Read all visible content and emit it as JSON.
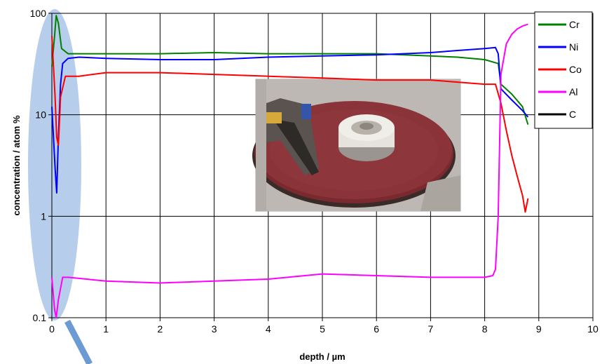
{
  "chart_data": {
    "type": "line",
    "title": "",
    "xlabel": "depth / µm",
    "ylabel": "concentration / atom %",
    "xlim": [
      0,
      10
    ],
    "ylim": [
      0.1,
      100
    ],
    "yscale": "log",
    "grid": true,
    "legend_position": "top-right",
    "x_ticks": [
      "0",
      "1",
      "2",
      "3",
      "4",
      "5",
      "6",
      "7",
      "8",
      "9",
      "10"
    ],
    "y_ticks": [
      "0.1",
      "1",
      "10",
      "100"
    ],
    "series": [
      {
        "name": "Cr",
        "color": "#008000",
        "x": [
          0.0,
          0.05,
          0.08,
          0.12,
          0.18,
          0.3,
          0.5,
          1,
          2,
          3,
          4,
          5,
          6,
          7,
          7.5,
          8.0,
          8.25,
          8.3,
          8.5,
          8.7,
          8.8
        ],
        "y": [
          30,
          60,
          95,
          80,
          45,
          40,
          40,
          40,
          40,
          41,
          40,
          40,
          40,
          38,
          37,
          35,
          32,
          20,
          16,
          12,
          8
        ]
      },
      {
        "name": "Ni",
        "color": "#0000ff",
        "x": [
          0.0,
          0.03,
          0.06,
          0.09,
          0.12,
          0.16,
          0.2,
          0.3,
          0.5,
          1,
          2,
          3,
          4,
          5,
          6,
          7,
          7.5,
          8.0,
          8.2,
          8.25,
          8.3,
          8.5,
          8.7,
          8.8
        ],
        "y": [
          12,
          6,
          3,
          1.7,
          6,
          20,
          32,
          36,
          37,
          36,
          35,
          35,
          37,
          38,
          39,
          41,
          43,
          45,
          46,
          40,
          18,
          14,
          11,
          9.5
        ]
      },
      {
        "name": "Co",
        "color": "#ff0000",
        "x": [
          0.0,
          0.03,
          0.06,
          0.09,
          0.12,
          0.16,
          0.25,
          0.5,
          1,
          2,
          3,
          4,
          5,
          6,
          7,
          7.5,
          8.0,
          8.2,
          8.3,
          8.4,
          8.5,
          8.6,
          8.7,
          8.75,
          8.8
        ],
        "y": [
          60,
          30,
          15,
          6,
          5,
          15,
          24,
          24,
          26,
          26,
          25,
          24,
          23,
          22,
          22,
          21,
          20,
          20,
          13,
          7,
          4,
          2.5,
          1.6,
          1.1,
          1.5
        ]
      },
      {
        "name": "Al",
        "color": "#ff00ff",
        "x": [
          0.0,
          0.05,
          0.08,
          0.12,
          0.2,
          0.3,
          1,
          2,
          3,
          4,
          5,
          6,
          7,
          7.5,
          8.0,
          8.15,
          8.2,
          8.25,
          8.3,
          8.4,
          8.5,
          8.6,
          8.7,
          8.8
        ],
        "y": [
          0.25,
          0.12,
          0.1,
          0.15,
          0.25,
          0.25,
          0.23,
          0.22,
          0.23,
          0.24,
          0.27,
          0.26,
          0.25,
          0.25,
          0.25,
          0.26,
          0.3,
          1.0,
          25,
          50,
          62,
          70,
          75,
          78
        ]
      },
      {
        "name": "C",
        "color": "#000000",
        "x": [],
        "y": []
      }
    ]
  },
  "colors": {
    "highlight_ellipse": "#a9c6e8",
    "callout_pointer": "#6b9bd2"
  }
}
